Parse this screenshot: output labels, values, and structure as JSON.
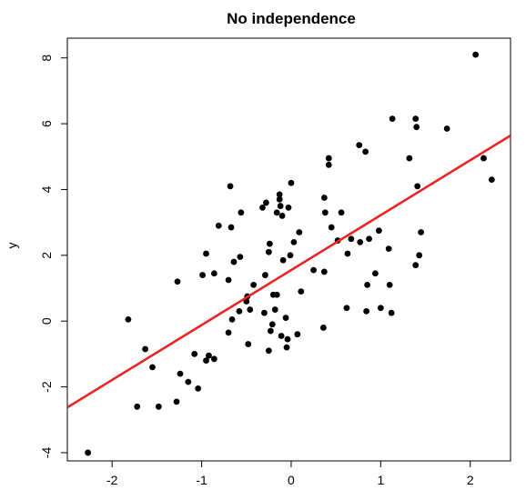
{
  "chart_data": {
    "type": "scatter",
    "title": "No independence",
    "xlabel": "",
    "ylabel": "y",
    "xlim": [
      -2.5,
      2.45
    ],
    "ylim": [
      -4.25,
      8.6
    ],
    "xticks": [
      -2,
      -1,
      0,
      1,
      2
    ],
    "yticks": [
      -4,
      -2,
      0,
      2,
      4,
      6,
      8
    ],
    "xtick_labels": [
      "-2",
      "-1",
      "0",
      "1",
      "2"
    ],
    "ytick_labels": [
      "-4",
      "-2",
      "0",
      "2",
      "4",
      "6",
      "8"
    ],
    "grid": false,
    "legend": "none",
    "point_color": "#000000",
    "line_color": "#ee2222",
    "regression_line": {
      "intercept": 1.55,
      "slope": 1.67
    },
    "points": [
      {
        "x": -2.27,
        "y": -4.0
      },
      {
        "x": -1.82,
        "y": 0.05
      },
      {
        "x": -1.72,
        "y": -2.6
      },
      {
        "x": -1.63,
        "y": -0.85
      },
      {
        "x": -1.55,
        "y": -1.4
      },
      {
        "x": -1.48,
        "y": -2.6
      },
      {
        "x": -1.28,
        "y": -2.45
      },
      {
        "x": -1.27,
        "y": 1.2
      },
      {
        "x": -1.24,
        "y": -1.6
      },
      {
        "x": -1.15,
        "y": -1.85
      },
      {
        "x": -1.08,
        "y": -1.0
      },
      {
        "x": -1.04,
        "y": -2.05
      },
      {
        "x": -0.99,
        "y": 1.4
      },
      {
        "x": -0.95,
        "y": 2.05
      },
      {
        "x": -0.95,
        "y": -1.2
      },
      {
        "x": -0.92,
        "y": -1.05
      },
      {
        "x": -0.86,
        "y": 1.45
      },
      {
        "x": -0.86,
        "y": -1.15
      },
      {
        "x": -0.81,
        "y": 2.9
      },
      {
        "x": -0.7,
        "y": -0.35
      },
      {
        "x": -0.7,
        "y": 1.25
      },
      {
        "x": -0.68,
        "y": 4.1
      },
      {
        "x": -0.67,
        "y": 2.85
      },
      {
        "x": -0.66,
        "y": 0.05
      },
      {
        "x": -0.64,
        "y": 1.8
      },
      {
        "x": -0.58,
        "y": 0.3
      },
      {
        "x": -0.57,
        "y": 1.95
      },
      {
        "x": -0.56,
        "y": 3.3
      },
      {
        "x": -0.5,
        "y": 0.6
      },
      {
        "x": -0.49,
        "y": 0.75
      },
      {
        "x": -0.48,
        "y": -0.7
      },
      {
        "x": -0.46,
        "y": 0.35
      },
      {
        "x": -0.42,
        "y": 1.1
      },
      {
        "x": -0.32,
        "y": 3.45
      },
      {
        "x": -0.3,
        "y": 0.25
      },
      {
        "x": -0.29,
        "y": 1.4
      },
      {
        "x": -0.28,
        "y": 3.6
      },
      {
        "x": -0.25,
        "y": -0.9
      },
      {
        "x": -0.25,
        "y": 2.1
      },
      {
        "x": -0.24,
        "y": 2.35
      },
      {
        "x": -0.23,
        "y": -0.3
      },
      {
        "x": -0.21,
        "y": -0.1
      },
      {
        "x": -0.2,
        "y": 0.8
      },
      {
        "x": -0.18,
        "y": 0.35
      },
      {
        "x": -0.16,
        "y": 0.8
      },
      {
        "x": -0.16,
        "y": 3.3
      },
      {
        "x": -0.13,
        "y": 3.85
      },
      {
        "x": -0.13,
        "y": 3.7
      },
      {
        "x": -0.12,
        "y": 3.5
      },
      {
        "x": -0.11,
        "y": -0.45
      },
      {
        "x": -0.1,
        "y": 3.2
      },
      {
        "x": -0.09,
        "y": 1.85
      },
      {
        "x": -0.06,
        "y": 0.1
      },
      {
        "x": -0.05,
        "y": -0.8
      },
      {
        "x": -0.04,
        "y": -0.55
      },
      {
        "x": -0.03,
        "y": 3.45
      },
      {
        "x": -0.01,
        "y": 2.0
      },
      {
        "x": 0.0,
        "y": 4.2
      },
      {
        "x": 0.03,
        "y": 2.4
      },
      {
        "x": 0.07,
        "y": -0.4
      },
      {
        "x": 0.09,
        "y": 2.7
      },
      {
        "x": 0.11,
        "y": 0.9
      },
      {
        "x": 0.25,
        "y": 1.55
      },
      {
        "x": 0.36,
        "y": -0.2
      },
      {
        "x": 0.37,
        "y": 1.5
      },
      {
        "x": 0.37,
        "y": 3.75
      },
      {
        "x": 0.38,
        "y": 3.3
      },
      {
        "x": 0.42,
        "y": 4.95
      },
      {
        "x": 0.42,
        "y": 4.75
      },
      {
        "x": 0.45,
        "y": 2.85
      },
      {
        "x": 0.52,
        "y": 2.45
      },
      {
        "x": 0.56,
        "y": 3.3
      },
      {
        "x": 0.62,
        "y": 0.4
      },
      {
        "x": 0.63,
        "y": 2.05
      },
      {
        "x": 0.67,
        "y": 2.5
      },
      {
        "x": 0.76,
        "y": 5.35
      },
      {
        "x": 0.77,
        "y": 2.4
      },
      {
        "x": 0.83,
        "y": 5.15
      },
      {
        "x": 0.84,
        "y": 0.3
      },
      {
        "x": 0.85,
        "y": 1.1
      },
      {
        "x": 0.87,
        "y": 2.5
      },
      {
        "x": 0.94,
        "y": 1.45
      },
      {
        "x": 0.98,
        "y": 2.75
      },
      {
        "x": 1.0,
        "y": 0.4
      },
      {
        "x": 1.09,
        "y": 2.2
      },
      {
        "x": 1.1,
        "y": 1.1
      },
      {
        "x": 1.12,
        "y": 0.25
      },
      {
        "x": 1.13,
        "y": 6.15
      },
      {
        "x": 1.32,
        "y": 4.95
      },
      {
        "x": 1.39,
        "y": 1.7
      },
      {
        "x": 1.39,
        "y": 6.15
      },
      {
        "x": 1.4,
        "y": 5.9
      },
      {
        "x": 1.41,
        "y": 4.1
      },
      {
        "x": 1.43,
        "y": 2.0
      },
      {
        "x": 1.45,
        "y": 2.7
      },
      {
        "x": 1.74,
        "y": 5.85
      },
      {
        "x": 2.06,
        "y": 8.1
      },
      {
        "x": 2.15,
        "y": 4.95
      },
      {
        "x": 2.24,
        "y": 4.3
      }
    ]
  }
}
